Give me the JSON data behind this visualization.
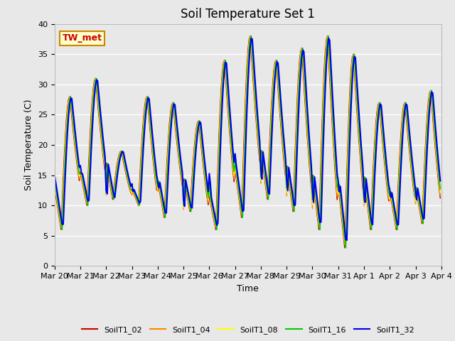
{
  "title": "Soil Temperature Set 1",
  "ylabel": "Soil Temperature (C)",
  "xlabel": "Time",
  "annotation": "TW_met",
  "ylim": [
    0,
    40
  ],
  "series_colors": {
    "SoilT1_02": "#cc0000",
    "SoilT1_04": "#ff8800",
    "SoilT1_08": "#ffff00",
    "SoilT1_16": "#00cc00",
    "SoilT1_32": "#0000ee"
  },
  "legend_labels": [
    "SoilT1_02",
    "SoilT1_04",
    "SoilT1_08",
    "SoilT1_16",
    "SoilT1_32"
  ],
  "x_tick_labels": [
    "Mar 20",
    "Mar 21",
    "Mar 22",
    "Mar 23",
    "Mar 24",
    "Mar 25",
    "Mar 26",
    "Mar 27",
    "Mar 28",
    "Mar 29",
    "Mar 30",
    "Mar 31",
    "Apr 1",
    "Apr 2",
    "Apr 3",
    "Apr 4"
  ],
  "plot_bg_color": "#e8e8e8",
  "fig_bg_color": "#e8e8e8",
  "grid_color": "#ffffff",
  "title_fontsize": 12,
  "axis_fontsize": 9,
  "tick_fontsize": 8,
  "day_peaks": [
    28,
    31,
    19,
    28,
    27,
    24,
    34,
    38,
    34,
    36,
    38,
    35,
    27,
    27,
    29
  ],
  "day_troughs": [
    6,
    10,
    11,
    10,
    8,
    9,
    6,
    8,
    11,
    9,
    6,
    3,
    6,
    6,
    7
  ],
  "peak_hour": 14,
  "trough_hour": 6
}
